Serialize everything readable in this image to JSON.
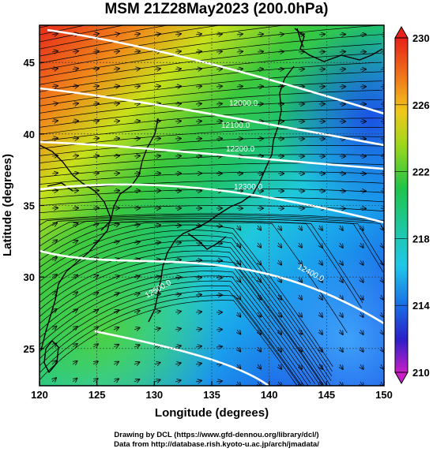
{
  "title": "MSM 21Z28May2023 (200.0hPa)",
  "xaxis": {
    "label": "Longitude (degrees)",
    "ticks": [
      "120",
      "125",
      "130",
      "135",
      "140",
      "145",
      "150"
    ],
    "range": [
      120,
      150
    ]
  },
  "yaxis": {
    "label": "Latitude  (degrees)",
    "ticks": [
      "25",
      "30",
      "35",
      "40",
      "45"
    ],
    "range": [
      22.4,
      47.6
    ]
  },
  "colorbar": {
    "labels": [
      "230",
      "226",
      "222",
      "218",
      "214",
      "210"
    ],
    "range": [
      210,
      230
    ]
  },
  "contour_labels": [
    "12000.0",
    "12100.0",
    "12200.0",
    "12300.0",
    "12400.0",
    "12500.0"
  ],
  "credits": {
    "line1": "Drawing by DCL (https://www.gfd-dennou.org/library/dcl/)",
    "line2": "Data from http://database.rish.kyoto-u.ac.jp/arch/jmadata/"
  },
  "colors": {
    "warm": "#e8421a",
    "mid": "#9ed71a",
    "green": "#1ec44a",
    "cyan": "#22c8e8",
    "blue": "#1464e6"
  }
}
